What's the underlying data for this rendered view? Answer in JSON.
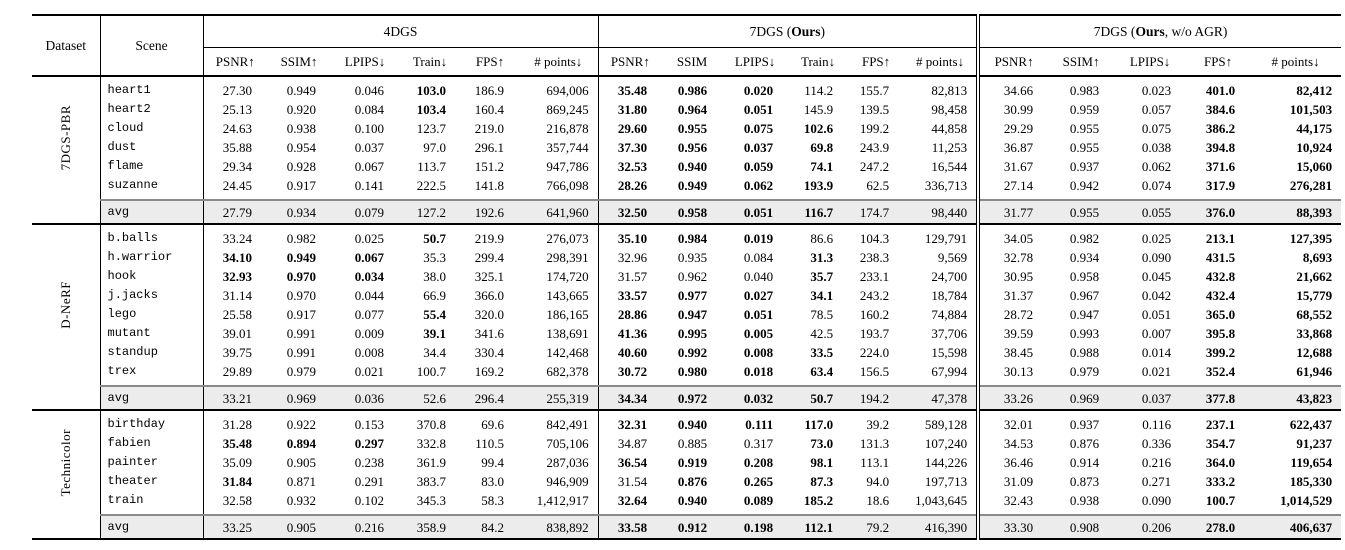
{
  "colors": {
    "text": "#000000",
    "avg_row_bg": "#ececec",
    "avg_rule_gray": "#8a8a8a",
    "rule_black": "#000000"
  },
  "table": {
    "header": {
      "dataset": "Dataset",
      "scene": "Scene",
      "groups": [
        {
          "pre": "4DGS",
          "bold_text": "",
          "post": "",
          "cols": [
            "PSNR↑",
            "SSIM↑",
            "LPIPS↓",
            "Train↓",
            "FPS↑",
            "# points↓"
          ]
        },
        {
          "pre": "7DGS (",
          "bold_text": "Ours",
          "post": ")",
          "cols": [
            "PSNR↑",
            "SSIM",
            "LPIPS↓",
            "Train↓",
            "FPS↑",
            "# points↓"
          ]
        },
        {
          "pre": "7DGS (",
          "bold_text": "Ours",
          "post": ", w/o AGR)",
          "cols": [
            "PSNR↑",
            "SSIM↑",
            "LPIPS↓",
            "FPS↑",
            "# points↓"
          ]
        }
      ]
    },
    "sections": [
      {
        "dataset": "7DGS-PBR",
        "rows": [
          {
            "scene": "heart1",
            "v": [
              "27.30",
              "0.949",
              "0.046",
              "103.0",
              "186.9",
              "694,006",
              "35.48",
              "0.986",
              "0.020",
              "114.2",
              "155.7",
              "82,813",
              "34.66",
              "0.983",
              "0.023",
              "401.0",
              "82,412"
            ],
            "b": [
              0,
              0,
              0,
              1,
              0,
              0,
              1,
              1,
              1,
              0,
              0,
              0,
              0,
              0,
              0,
              1,
              1
            ]
          },
          {
            "scene": "heart2",
            "v": [
              "25.13",
              "0.920",
              "0.084",
              "103.4",
              "160.4",
              "869,245",
              "31.80",
              "0.964",
              "0.051",
              "145.9",
              "139.5",
              "98,458",
              "30.99",
              "0.959",
              "0.057",
              "384.6",
              "101,503"
            ],
            "b": [
              0,
              0,
              0,
              1,
              0,
              0,
              1,
              1,
              1,
              0,
              0,
              0,
              0,
              0,
              0,
              1,
              1
            ]
          },
          {
            "scene": "cloud",
            "v": [
              "24.63",
              "0.938",
              "0.100",
              "123.7",
              "219.0",
              "216,878",
              "29.60",
              "0.955",
              "0.075",
              "102.6",
              "199.2",
              "44,858",
              "29.29",
              "0.955",
              "0.075",
              "386.2",
              "44,175"
            ],
            "b": [
              0,
              0,
              0,
              0,
              0,
              0,
              1,
              1,
              1,
              1,
              0,
              0,
              0,
              0,
              0,
              1,
              1
            ]
          },
          {
            "scene": "dust",
            "v": [
              "35.88",
              "0.954",
              "0.037",
              "97.0",
              "296.1",
              "357,744",
              "37.30",
              "0.956",
              "0.037",
              "69.8",
              "243.9",
              "11,253",
              "36.87",
              "0.955",
              "0.038",
              "394.8",
              "10,924"
            ],
            "b": [
              0,
              0,
              0,
              0,
              0,
              0,
              1,
              1,
              1,
              1,
              0,
              0,
              0,
              0,
              0,
              1,
              1
            ]
          },
          {
            "scene": "flame",
            "v": [
              "29.34",
              "0.928",
              "0.067",
              "113.7",
              "151.2",
              "947,786",
              "32.53",
              "0.940",
              "0.059",
              "74.1",
              "247.2",
              "16,544",
              "31.67",
              "0.937",
              "0.062",
              "371.6",
              "15,060"
            ],
            "b": [
              0,
              0,
              0,
              0,
              0,
              0,
              1,
              1,
              1,
              1,
              0,
              0,
              0,
              0,
              0,
              1,
              1
            ]
          },
          {
            "scene": "suzanne",
            "v": [
              "24.45",
              "0.917",
              "0.141",
              "222.5",
              "141.8",
              "766,098",
              "28.26",
              "0.949",
              "0.062",
              "193.9",
              "62.5",
              "336,713",
              "27.14",
              "0.942",
              "0.074",
              "317.9",
              "276,281"
            ],
            "b": [
              0,
              0,
              0,
              0,
              0,
              0,
              1,
              1,
              1,
              1,
              0,
              0,
              0,
              0,
              0,
              1,
              1
            ]
          }
        ],
        "avg": {
          "scene": "avg",
          "v": [
            "27.79",
            "0.934",
            "0.079",
            "127.2",
            "192.6",
            "641,960",
            "32.50",
            "0.958",
            "0.051",
            "116.7",
            "174.7",
            "98,440",
            "31.77",
            "0.955",
            "0.055",
            "376.0",
            "88,393"
          ],
          "b": [
            0,
            0,
            0,
            0,
            0,
            0,
            1,
            1,
            1,
            1,
            0,
            0,
            0,
            0,
            0,
            1,
            1
          ]
        }
      },
      {
        "dataset": "D-NeRF",
        "rows": [
          {
            "scene": "b.balls",
            "v": [
              "33.24",
              "0.982",
              "0.025",
              "50.7",
              "219.9",
              "276,073",
              "35.10",
              "0.984",
              "0.019",
              "86.6",
              "104.3",
              "129,791",
              "34.05",
              "0.982",
              "0.025",
              "213.1",
              "127,395"
            ],
            "b": [
              0,
              0,
              0,
              1,
              0,
              0,
              1,
              1,
              1,
              0,
              0,
              0,
              0,
              0,
              0,
              1,
              1
            ]
          },
          {
            "scene": "h.warrior",
            "v": [
              "34.10",
              "0.949",
              "0.067",
              "35.3",
              "299.4",
              "298,391",
              "32.96",
              "0.935",
              "0.084",
              "31.3",
              "238.3",
              "9,569",
              "32.78",
              "0.934",
              "0.090",
              "431.5",
              "8,693"
            ],
            "b": [
              1,
              1,
              1,
              0,
              0,
              0,
              0,
              0,
              0,
              1,
              0,
              0,
              0,
              0,
              0,
              1,
              1
            ]
          },
          {
            "scene": "hook",
            "v": [
              "32.93",
              "0.970",
              "0.034",
              "38.0",
              "325.1",
              "174,720",
              "31.57",
              "0.962",
              "0.040",
              "35.7",
              "233.1",
              "24,700",
              "30.95",
              "0.958",
              "0.045",
              "432.8",
              "21,662"
            ],
            "b": [
              1,
              1,
              1,
              0,
              0,
              0,
              0,
              0,
              0,
              1,
              0,
              0,
              0,
              0,
              0,
              1,
              1
            ]
          },
          {
            "scene": "j.jacks",
            "v": [
              "31.14",
              "0.970",
              "0.044",
              "66.9",
              "366.0",
              "143,665",
              "33.57",
              "0.977",
              "0.027",
              "34.1",
              "243.2",
              "18,784",
              "31.37",
              "0.967",
              "0.042",
              "432.4",
              "15,779"
            ],
            "b": [
              0,
              0,
              0,
              0,
              0,
              0,
              1,
              1,
              1,
              1,
              0,
              0,
              0,
              0,
              0,
              1,
              1
            ]
          },
          {
            "scene": "lego",
            "v": [
              "25.58",
              "0.917",
              "0.077",
              "55.4",
              "320.0",
              "186,165",
              "28.86",
              "0.947",
              "0.051",
              "78.5",
              "160.2",
              "74,884",
              "28.72",
              "0.947",
              "0.051",
              "365.0",
              "68,552"
            ],
            "b": [
              0,
              0,
              0,
              1,
              0,
              0,
              1,
              1,
              1,
              0,
              0,
              0,
              0,
              0,
              0,
              1,
              1
            ]
          },
          {
            "scene": "mutant",
            "v": [
              "39.01",
              "0.991",
              "0.009",
              "39.1",
              "341.6",
              "138,691",
              "41.36",
              "0.995",
              "0.005",
              "42.5",
              "193.7",
              "37,706",
              "39.59",
              "0.993",
              "0.007",
              "395.8",
              "33,868"
            ],
            "b": [
              0,
              0,
              0,
              1,
              0,
              0,
              1,
              1,
              1,
              0,
              0,
              0,
              0,
              0,
              0,
              1,
              1
            ]
          },
          {
            "scene": "standup",
            "v": [
              "39.75",
              "0.991",
              "0.008",
              "34.4",
              "330.4",
              "142,468",
              "40.60",
              "0.992",
              "0.008",
              "33.5",
              "224.0",
              "15,598",
              "38.45",
              "0.988",
              "0.014",
              "399.2",
              "12,688"
            ],
            "b": [
              0,
              0,
              0,
              0,
              0,
              0,
              1,
              1,
              1,
              1,
              0,
              0,
              0,
              0,
              0,
              1,
              1
            ]
          },
          {
            "scene": "trex",
            "v": [
              "29.89",
              "0.979",
              "0.021",
              "100.7",
              "169.2",
              "682,378",
              "30.72",
              "0.980",
              "0.018",
              "63.4",
              "156.5",
              "67,994",
              "30.13",
              "0.979",
              "0.021",
              "352.4",
              "61,946"
            ],
            "b": [
              0,
              0,
              0,
              0,
              0,
              0,
              1,
              1,
              1,
              1,
              0,
              0,
              0,
              0,
              0,
              1,
              1
            ]
          }
        ],
        "avg": {
          "scene": "avg",
          "v": [
            "33.21",
            "0.969",
            "0.036",
            "52.6",
            "296.4",
            "255,319",
            "34.34",
            "0.972",
            "0.032",
            "50.7",
            "194.2",
            "47,378",
            "33.26",
            "0.969",
            "0.037",
            "377.8",
            "43,823"
          ],
          "b": [
            0,
            0,
            0,
            0,
            0,
            0,
            1,
            1,
            1,
            1,
            0,
            0,
            0,
            0,
            0,
            1,
            1
          ]
        }
      },
      {
        "dataset": "Technicolor",
        "rows": [
          {
            "scene": "birthday",
            "v": [
              "31.28",
              "0.922",
              "0.153",
              "370.8",
              "69.6",
              "842,491",
              "32.31",
              "0.940",
              "0.111",
              "117.0",
              "39.2",
              "589,128",
              "32.01",
              "0.937",
              "0.116",
              "237.1",
              "622,437"
            ],
            "b": [
              0,
              0,
              0,
              0,
              0,
              0,
              1,
              1,
              1,
              1,
              0,
              0,
              0,
              0,
              0,
              1,
              1
            ]
          },
          {
            "scene": "fabien",
            "v": [
              "35.48",
              "0.894",
              "0.297",
              "332.8",
              "110.5",
              "705,106",
              "34.87",
              "0.885",
              "0.317",
              "73.0",
              "131.3",
              "107,240",
              "34.53",
              "0.876",
              "0.336",
              "354.7",
              "91,237"
            ],
            "b": [
              1,
              1,
              1,
              0,
              0,
              0,
              0,
              0,
              0,
              1,
              0,
              0,
              0,
              0,
              0,
              1,
              1
            ]
          },
          {
            "scene": "painter",
            "v": [
              "35.09",
              "0.905",
              "0.238",
              "361.9",
              "99.4",
              "287,036",
              "36.54",
              "0.919",
              "0.208",
              "98.1",
              "113.1",
              "144,226",
              "36.46",
              "0.914",
              "0.216",
              "364.0",
              "119,654"
            ],
            "b": [
              0,
              0,
              0,
              0,
              0,
              0,
              1,
              1,
              1,
              1,
              0,
              0,
              0,
              0,
              0,
              1,
              1
            ]
          },
          {
            "scene": "theater",
            "v": [
              "31.84",
              "0.871",
              "0.291",
              "383.7",
              "83.0",
              "946,909",
              "31.54",
              "0.876",
              "0.265",
              "87.3",
              "94.0",
              "197,713",
              "31.09",
              "0.873",
              "0.271",
              "333.2",
              "185,330"
            ],
            "b": [
              1,
              0,
              0,
              0,
              0,
              0,
              0,
              1,
              1,
              1,
              0,
              0,
              0,
              0,
              0,
              1,
              1
            ]
          },
          {
            "scene": "train",
            "v": [
              "32.58",
              "0.932",
              "0.102",
              "345.3",
              "58.3",
              "1,412,917",
              "32.64",
              "0.940",
              "0.089",
              "185.2",
              "18.6",
              "1,043,645",
              "32.43",
              "0.938",
              "0.090",
              "100.7",
              "1,014,529"
            ],
            "b": [
              0,
              0,
              0,
              0,
              0,
              0,
              1,
              1,
              1,
              1,
              0,
              0,
              0,
              0,
              0,
              1,
              1
            ]
          }
        ],
        "avg": {
          "scene": "avg",
          "v": [
            "33.25",
            "0.905",
            "0.216",
            "358.9",
            "84.2",
            "838,892",
            "33.58",
            "0.912",
            "0.198",
            "112.1",
            "79.2",
            "416,390",
            "33.30",
            "0.908",
            "0.206",
            "278.0",
            "406,637"
          ],
          "b": [
            0,
            0,
            0,
            0,
            0,
            0,
            1,
            1,
            1,
            1,
            0,
            0,
            0,
            0,
            0,
            1,
            1
          ]
        }
      }
    ]
  }
}
